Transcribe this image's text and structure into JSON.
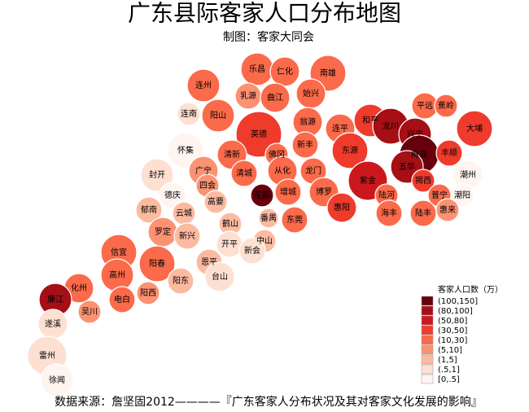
{
  "header": {
    "title": "广东县际客家人口分布地图",
    "subtitle": "制图：客家大同会"
  },
  "legend": {
    "title": "客家人口数（万）",
    "items": [
      {
        "label": "(100,150]",
        "color": "#67000d"
      },
      {
        "label": "(80,100]",
        "color": "#a50f15"
      },
      {
        "label": "(50,80]",
        "color": "#cb181d"
      },
      {
        "label": "(30,50]",
        "color": "#ef3b2c"
      },
      {
        "label": "(10,30]",
        "color": "#fb6a4a"
      },
      {
        "label": "(5,10]",
        "color": "#fc9272"
      },
      {
        "label": "(1,5]",
        "color": "#fcbba1"
      },
      {
        "label": "(.5,1]",
        "color": "#fee0d2"
      },
      {
        "label": "[0,.5]",
        "color": "#fff5f0"
      }
    ]
  },
  "regions": [
    {
      "name": "乐昌",
      "level": 4
    },
    {
      "name": "仁化",
      "level": 4
    },
    {
      "name": "南雄",
      "level": 4
    },
    {
      "name": "连州",
      "level": 4
    },
    {
      "name": "乳源",
      "level": 5
    },
    {
      "name": "曲江",
      "level": 4
    },
    {
      "name": "始兴",
      "level": 4
    },
    {
      "name": "连南",
      "level": 7
    },
    {
      "name": "阳山",
      "level": 4
    },
    {
      "name": "翁源",
      "level": 4
    },
    {
      "name": "连平",
      "level": 4
    },
    {
      "name": "和平",
      "level": 3
    },
    {
      "name": "平远",
      "level": 4
    },
    {
      "name": "蕉岭",
      "level": 4
    },
    {
      "name": "大埔",
      "level": 3
    },
    {
      "name": "英德",
      "level": 3
    },
    {
      "name": "龙川",
      "level": 1
    },
    {
      "name": "兴宁",
      "level": 1
    },
    {
      "name": "梅县",
      "level": 0
    },
    {
      "name": "丰顺",
      "level": 3
    },
    {
      "name": "怀集",
      "level": 8
    },
    {
      "name": "清新",
      "level": 4
    },
    {
      "name": "佛冈",
      "level": 4
    },
    {
      "name": "新丰",
      "level": 4
    },
    {
      "name": "东源",
      "level": 3
    },
    {
      "name": "五华",
      "level": 1
    },
    {
      "name": "广宁",
      "level": 5
    },
    {
      "name": "封开",
      "level": 7
    },
    {
      "name": "四会",
      "level": 5
    },
    {
      "name": "清城",
      "level": 4
    },
    {
      "name": "从化",
      "level": 4
    },
    {
      "name": "龙门",
      "level": 4
    },
    {
      "name": "紫金",
      "level": 2
    },
    {
      "name": "揭西",
      "level": 3
    },
    {
      "name": "潮州",
      "level": 8
    },
    {
      "name": "德庆",
      "level": 8
    },
    {
      "name": "花都",
      "level": 0
    },
    {
      "name": "增城",
      "level": 4
    },
    {
      "name": "博罗",
      "level": 4
    },
    {
      "name": "陆河",
      "level": 4
    },
    {
      "name": "普宁",
      "level": 4
    },
    {
      "name": "潮阳",
      "level": 8
    },
    {
      "name": "云城",
      "level": 6
    },
    {
      "name": "高要",
      "level": 6
    },
    {
      "name": "番禺",
      "level": 6
    },
    {
      "name": "惠阳",
      "level": 3
    },
    {
      "name": "海丰",
      "level": 4
    },
    {
      "name": "陆丰",
      "level": 4
    },
    {
      "name": "惠来",
      "level": 5
    },
    {
      "name": "郁南",
      "level": 6
    },
    {
      "name": "罗定",
      "level": 5
    },
    {
      "name": "新兴",
      "level": 6
    },
    {
      "name": "鹤山",
      "level": 6
    },
    {
      "name": "东莞",
      "level": 4
    },
    {
      "name": "中山",
      "level": 6
    },
    {
      "name": "开平",
      "level": 7
    },
    {
      "name": "新会",
      "level": 7
    },
    {
      "name": "信宜",
      "level": 4
    },
    {
      "name": "阳春",
      "level": 4
    },
    {
      "name": "恩平",
      "level": 6
    },
    {
      "name": "台山",
      "level": 7
    },
    {
      "name": "化州",
      "level": 4
    },
    {
      "name": "高州",
      "level": 4
    },
    {
      "name": "电白",
      "level": 4
    },
    {
      "name": "阳西",
      "level": 5
    },
    {
      "name": "阳东",
      "level": 6
    },
    {
      "name": "廉江",
      "level": 1
    },
    {
      "name": "吴川",
      "level": 5
    },
    {
      "name": "遂溪",
      "level": 7
    },
    {
      "name": "雷州",
      "level": 7
    },
    {
      "name": "徐闻",
      "level": 8
    }
  ],
  "footer": {
    "source": "数据来源：詹坚固2012————『广东客家人分布状况及其对客家文化发展的影响』"
  }
}
